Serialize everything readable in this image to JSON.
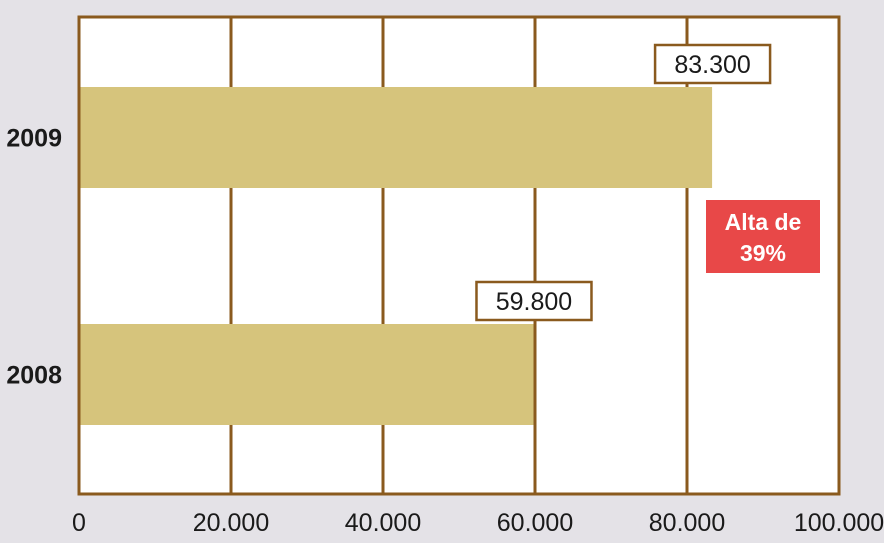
{
  "chart_data": {
    "type": "bar",
    "orientation": "horizontal",
    "categories": [
      "2009",
      "2008"
    ],
    "values": [
      83300,
      59800
    ],
    "data_labels": [
      "83.300",
      "59.800"
    ],
    "xlim": [
      0,
      100000
    ],
    "x_ticks": [
      0,
      20000,
      40000,
      60000,
      80000,
      100000
    ],
    "x_tick_labels": [
      "0",
      "20.000",
      "40.000",
      "60.000",
      "80.000",
      "100.000"
    ],
    "title": "",
    "xlabel": "",
    "ylabel": "",
    "grid": true,
    "annotation": {
      "lines": [
        "Alta de",
        "39%"
      ]
    }
  },
  "colors": {
    "background": "#e4e2e7",
    "plot_background": "#ffffff",
    "axis_and_grid": "#8a5a1e",
    "bar": "#d6c47c",
    "annotation_background": "#e84848",
    "annotation_text": "#ffffff",
    "label_text": "#1a1a1a"
  }
}
